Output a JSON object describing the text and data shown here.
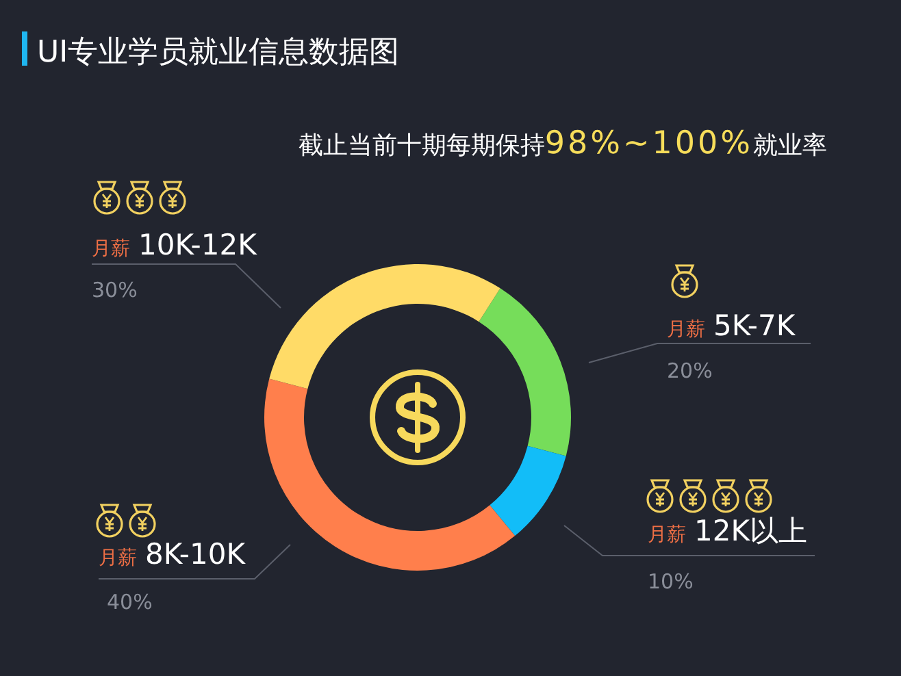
{
  "chart_data": {
    "type": "donut",
    "title": "UI专业学员就业信息数据图",
    "subtitle": "截止当前十期每期保持**98%~100%**就业率",
    "categories": [
      "月薪 5K-7K",
      "月薪 12K以上",
      "月薪 8K-10K",
      "月薪 10K-12K"
    ],
    "values": [
      20,
      10,
      40,
      30
    ],
    "value_labels": [
      "20%",
      "10%",
      "40%",
      "30%"
    ],
    "colors": [
      "#76dd5a",
      "#12bdf8",
      "#ff7f4c",
      "#ffdb67"
    ]
  }
}
